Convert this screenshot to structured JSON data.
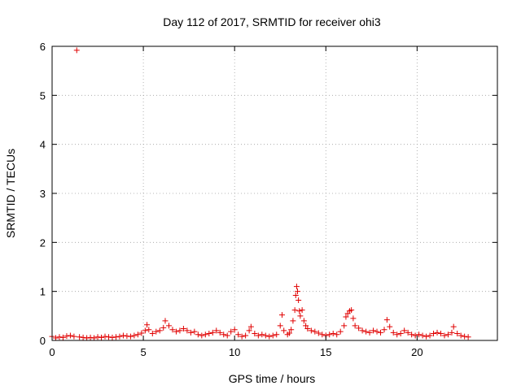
{
  "chart_data": {
    "type": "scatter",
    "title": "Day 112 of 2017, SRMTID for receiver ohi3",
    "xlabel": "GPS time / hours",
    "ylabel": "SRMTID / TECUs",
    "xlim": [
      0,
      24.4
    ],
    "ylim": [
      0,
      6
    ],
    "xticks": [
      0,
      5,
      10,
      15,
      20
    ],
    "yticks": [
      0,
      1,
      2,
      3,
      4,
      5,
      6
    ],
    "grid": true,
    "marker": "+",
    "color": "#e00000",
    "series": [
      {
        "name": "SRMTID",
        "points": [
          [
            0.0,
            0.08
          ],
          [
            0.2,
            0.05
          ],
          [
            0.4,
            0.07
          ],
          [
            0.6,
            0.06
          ],
          [
            0.8,
            0.09
          ],
          [
            1.0,
            0.1
          ],
          [
            1.2,
            0.08
          ],
          [
            1.35,
            5.92
          ],
          [
            1.5,
            0.07
          ],
          [
            1.7,
            0.06
          ],
          [
            1.9,
            0.05
          ],
          [
            2.1,
            0.06
          ],
          [
            2.3,
            0.05
          ],
          [
            2.5,
            0.07
          ],
          [
            2.7,
            0.06
          ],
          [
            2.9,
            0.08
          ],
          [
            3.1,
            0.07
          ],
          [
            3.3,
            0.06
          ],
          [
            3.5,
            0.07
          ],
          [
            3.7,
            0.08
          ],
          [
            3.9,
            0.1
          ],
          [
            4.1,
            0.09
          ],
          [
            4.3,
            0.08
          ],
          [
            4.5,
            0.1
          ],
          [
            4.7,
            0.12
          ],
          [
            4.9,
            0.15
          ],
          [
            5.1,
            0.2
          ],
          [
            5.2,
            0.32
          ],
          [
            5.3,
            0.22
          ],
          [
            5.5,
            0.14
          ],
          [
            5.7,
            0.18
          ],
          [
            5.9,
            0.2
          ],
          [
            6.1,
            0.26
          ],
          [
            6.2,
            0.4
          ],
          [
            6.4,
            0.3
          ],
          [
            6.6,
            0.22
          ],
          [
            6.8,
            0.18
          ],
          [
            7.0,
            0.2
          ],
          [
            7.2,
            0.24
          ],
          [
            7.4,
            0.2
          ],
          [
            7.6,
            0.16
          ],
          [
            7.8,
            0.18
          ],
          [
            8.0,
            0.12
          ],
          [
            8.2,
            0.1
          ],
          [
            8.4,
            0.12
          ],
          [
            8.6,
            0.14
          ],
          [
            8.8,
            0.16
          ],
          [
            9.0,
            0.2
          ],
          [
            9.2,
            0.16
          ],
          [
            9.4,
            0.12
          ],
          [
            9.6,
            0.1
          ],
          [
            9.8,
            0.18
          ],
          [
            10.0,
            0.22
          ],
          [
            10.2,
            0.12
          ],
          [
            10.4,
            0.08
          ],
          [
            10.6,
            0.1
          ],
          [
            10.8,
            0.2
          ],
          [
            10.9,
            0.28
          ],
          [
            11.1,
            0.14
          ],
          [
            11.3,
            0.1
          ],
          [
            11.5,
            0.12
          ],
          [
            11.7,
            0.1
          ],
          [
            11.9,
            0.08
          ],
          [
            12.1,
            0.1
          ],
          [
            12.3,
            0.12
          ],
          [
            12.5,
            0.3
          ],
          [
            12.6,
            0.52
          ],
          [
            12.7,
            0.2
          ],
          [
            12.9,
            0.12
          ],
          [
            13.0,
            0.15
          ],
          [
            13.1,
            0.22
          ],
          [
            13.2,
            0.4
          ],
          [
            13.3,
            0.62
          ],
          [
            13.35,
            0.92
          ],
          [
            13.4,
            1.1
          ],
          [
            13.45,
            1.0
          ],
          [
            13.5,
            0.82
          ],
          [
            13.55,
            0.6
          ],
          [
            13.6,
            0.5
          ],
          [
            13.7,
            0.62
          ],
          [
            13.8,
            0.4
          ],
          [
            13.9,
            0.3
          ],
          [
            14.0,
            0.24
          ],
          [
            14.2,
            0.2
          ],
          [
            14.4,
            0.18
          ],
          [
            14.6,
            0.15
          ],
          [
            14.8,
            0.12
          ],
          [
            15.0,
            0.1
          ],
          [
            15.2,
            0.12
          ],
          [
            15.4,
            0.14
          ],
          [
            15.6,
            0.12
          ],
          [
            15.8,
            0.18
          ],
          [
            16.0,
            0.3
          ],
          [
            16.1,
            0.48
          ],
          [
            16.2,
            0.55
          ],
          [
            16.3,
            0.6
          ],
          [
            16.4,
            0.62
          ],
          [
            16.5,
            0.45
          ],
          [
            16.6,
            0.3
          ],
          [
            16.8,
            0.25
          ],
          [
            17.0,
            0.2
          ],
          [
            17.2,
            0.18
          ],
          [
            17.4,
            0.16
          ],
          [
            17.6,
            0.2
          ],
          [
            17.8,
            0.18
          ],
          [
            18.0,
            0.16
          ],
          [
            18.2,
            0.22
          ],
          [
            18.35,
            0.42
          ],
          [
            18.5,
            0.28
          ],
          [
            18.7,
            0.16
          ],
          [
            18.9,
            0.12
          ],
          [
            19.1,
            0.14
          ],
          [
            19.3,
            0.2
          ],
          [
            19.5,
            0.16
          ],
          [
            19.7,
            0.12
          ],
          [
            19.9,
            0.1
          ],
          [
            20.1,
            0.12
          ],
          [
            20.3,
            0.1
          ],
          [
            20.5,
            0.08
          ],
          [
            20.7,
            0.1
          ],
          [
            20.9,
            0.14
          ],
          [
            21.1,
            0.16
          ],
          [
            21.3,
            0.14
          ],
          [
            21.5,
            0.1
          ],
          [
            21.7,
            0.12
          ],
          [
            21.9,
            0.16
          ],
          [
            22.0,
            0.28
          ],
          [
            22.2,
            0.14
          ],
          [
            22.4,
            0.1
          ],
          [
            22.6,
            0.08
          ],
          [
            22.8,
            0.07
          ]
        ]
      }
    ]
  }
}
